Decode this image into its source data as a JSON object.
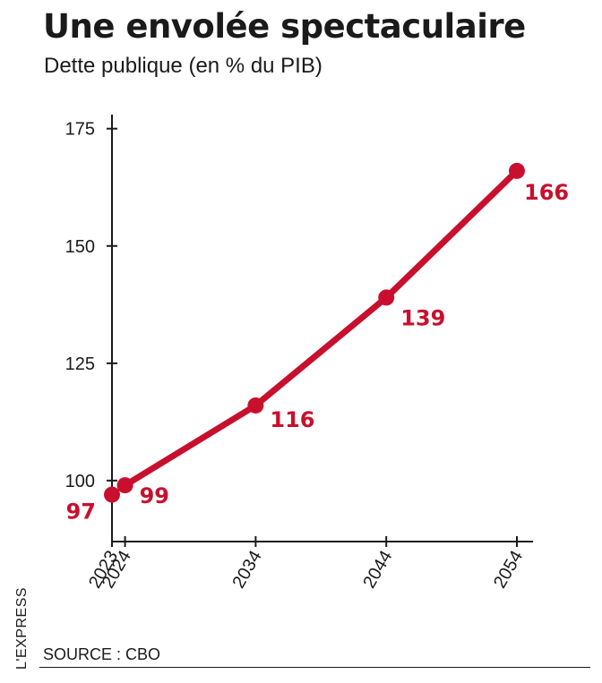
{
  "header": {
    "title": "Une envolée spectaculaire",
    "subtitle": "Dette publique (en % du PIB)"
  },
  "footer": {
    "brand": "L'EXPRESS",
    "source": "SOURCE : CBO"
  },
  "colors": {
    "series": "#c8102e",
    "text": "#1a1a1a"
  },
  "chart_data": {
    "type": "line",
    "title": "Une envolée spectaculaire",
    "subtitle": "Dette publique (en % du PIB)",
    "xlabel": "",
    "ylabel": "",
    "x": [
      2023,
      2024,
      2034,
      2044,
      2054
    ],
    "x_tick_labels": [
      "2023",
      "2024",
      "2034",
      "2044",
      "2054"
    ],
    "y_ticks": [
      100,
      125,
      150,
      175
    ],
    "y_tick_labels": [
      "100",
      "125",
      "150",
      "175"
    ],
    "ylim": [
      87,
      178
    ],
    "grid": false,
    "series": [
      {
        "values": [
          97,
          99,
          116,
          139,
          166
        ],
        "data_labels": [
          "97",
          "99",
          "116",
          "139",
          "166"
        ],
        "segment_styles": [
          "dotted",
          "solid",
          "solid",
          "solid"
        ]
      }
    ]
  }
}
